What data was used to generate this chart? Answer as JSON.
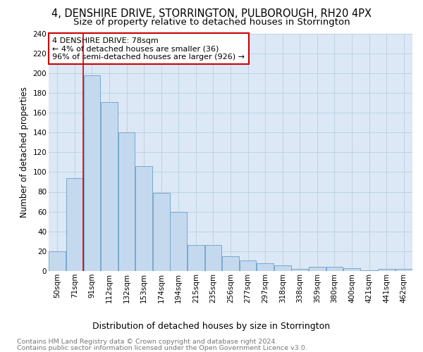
{
  "title": "4, DENSHIRE DRIVE, STORRINGTON, PULBOROUGH, RH20 4PX",
  "subtitle": "Size of property relative to detached houses in Storrington",
  "xlabel": "Distribution of detached houses by size in Storrington",
  "ylabel": "Number of detached properties",
  "categories": [
    "50sqm",
    "71sqm",
    "91sqm",
    "112sqm",
    "132sqm",
    "153sqm",
    "174sqm",
    "194sqm",
    "215sqm",
    "235sqm",
    "256sqm",
    "277sqm",
    "297sqm",
    "318sqm",
    "338sqm",
    "359sqm",
    "380sqm",
    "400sqm",
    "421sqm",
    "441sqm",
    "462sqm"
  ],
  "values": [
    20,
    94,
    198,
    171,
    140,
    106,
    79,
    60,
    26,
    26,
    15,
    11,
    8,
    6,
    2,
    4,
    4,
    3,
    1,
    2,
    2
  ],
  "bar_color": "#c5d9ee",
  "bar_edge_color": "#6a9fc8",
  "vline_x": 1.5,
  "vline_color": "#cc0000",
  "annotation_text": "4 DENSHIRE DRIVE: 78sqm\n← 4% of detached houses are smaller (36)\n96% of semi-detached houses are larger (926) →",
  "annotation_box_color": "#ffffff",
  "annotation_box_edge": "#cc0000",
  "ylim": [
    0,
    240
  ],
  "yticks": [
    0,
    20,
    40,
    60,
    80,
    100,
    120,
    140,
    160,
    180,
    200,
    220,
    240
  ],
  "grid_color": "#b8cfe0",
  "bg_color": "#dce8f5",
  "footnote1": "Contains HM Land Registry data © Crown copyright and database right 2024.",
  "footnote2": "Contains public sector information licensed under the Open Government Licence v3.0.",
  "title_fontsize": 10.5,
  "subtitle_fontsize": 9.5,
  "xlabel_fontsize": 9,
  "ylabel_fontsize": 8.5,
  "tick_fontsize": 7.5,
  "annotation_fontsize": 8,
  "footnote_fontsize": 6.8
}
